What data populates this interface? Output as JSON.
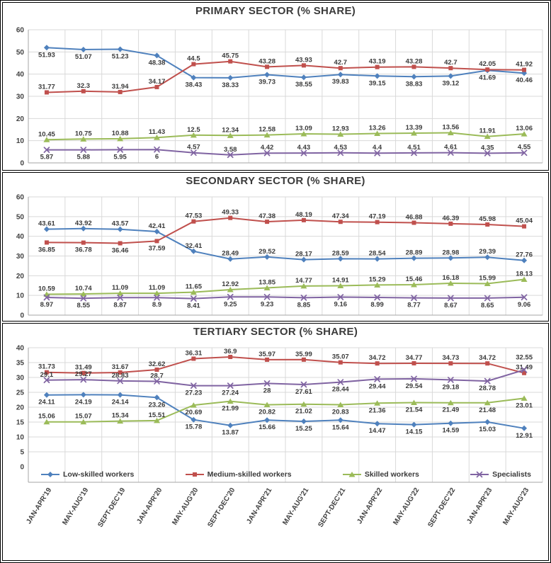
{
  "colors": {
    "grid": "#d9d9d9",
    "axis": "#a6a6a6",
    "tick_label": "#404040",
    "data_label": "#3a3a3a",
    "title": "#3b3b3b",
    "series_blue": "#4F81BD",
    "series_red": "#C0504D",
    "series_green": "#9BBB59",
    "series_purple": "#8064A2"
  },
  "categories": [
    "JAN-APR'19",
    "MAY-AUG'19",
    "SEPT-DEC'19",
    "JAN-APR'20",
    "MAY-AUG'20",
    "SEPT-DEC'20",
    "JAN-APR'21",
    "MAY-AUG'21",
    "SEPT-DEC'21",
    "JAN-APR'22",
    "MAY-AUG'22",
    "SEPT-DEC'22",
    "JAN-APR'23",
    "MAY-AUG'23"
  ],
  "legend": [
    {
      "label": "Low-skilled workers",
      "marker": "diamond",
      "color": "#4F81BD"
    },
    {
      "label": "Medium-skilled workers",
      "marker": "square",
      "color": "#C0504D"
    },
    {
      "label": "Skilled workers",
      "marker": "triangle",
      "color": "#9BBB59"
    },
    {
      "label": "Specialists",
      "marker": "x",
      "color": "#8064A2"
    }
  ],
  "chart_data": [
    {
      "type": "line",
      "title": "PRIMARY SECTOR (% SHARE)",
      "ylim": [
        0,
        60
      ],
      "ystep": 10,
      "grid": true,
      "legend_position": "none",
      "show_x_labels": false,
      "series": [
        {
          "name": "Low-skilled workers",
          "color": "#4F81BD",
          "marker": "diamond",
          "label_sides": "bbbbbbbbbbbbbb",
          "values": [
            51.93,
            51.07,
            51.23,
            48.38,
            38.43,
            38.33,
            39.73,
            38.55,
            39.83,
            39.15,
            38.83,
            39.12,
            41.69,
            40.46
          ]
        },
        {
          "name": "Medium-skilled workers",
          "color": "#C0504D",
          "marker": "square",
          "label_sides": "aaaaaaaaaaaaaa",
          "values": [
            31.77,
            32.3,
            31.94,
            34.17,
            44.5,
            45.75,
            43.28,
            43.93,
            42.7,
            43.19,
            43.28,
            42.7,
            42.05,
            41.92
          ]
        },
        {
          "name": "Skilled workers",
          "color": "#9BBB59",
          "marker": "triangle",
          "label_sides": "aaaaaaaaaaaaaa",
          "values": [
            10.45,
            10.75,
            10.88,
            11.43,
            12.5,
            12.34,
            12.58,
            13.09,
            12.93,
            13.26,
            13.39,
            13.56,
            11.91,
            13.06
          ]
        },
        {
          "name": "Specialists",
          "color": "#8064A2",
          "marker": "x",
          "label_sides": "bbbbaaaaaaaaaa",
          "values": [
            5.87,
            5.88,
            5.95,
            6,
            4.57,
            3.58,
            4.42,
            4.43,
            4.53,
            4.4,
            4.51,
            4.61,
            4.35,
            4.55
          ]
        }
      ]
    },
    {
      "type": "line",
      "title": "SECONDARY SECTOR (% SHARE)",
      "ylim": [
        0,
        60
      ],
      "ystep": 10,
      "grid": true,
      "legend_position": "none",
      "show_x_labels": false,
      "series": [
        {
          "name": "Low-skilled workers",
          "color": "#4F81BD",
          "marker": "diamond",
          "label_sides": "aaaaaaaaaaaaaa",
          "values": [
            43.61,
            43.92,
            43.57,
            42.41,
            32.41,
            28.49,
            29.52,
            28.17,
            28.59,
            28.54,
            28.89,
            28.98,
            29.39,
            27.76
          ]
        },
        {
          "name": "Medium-skilled workers",
          "color": "#C0504D",
          "marker": "square",
          "label_sides": "bbbbaaaaaaaaaa",
          "values": [
            36.85,
            36.78,
            36.46,
            37.59,
            47.53,
            49.33,
            47.38,
            48.19,
            47.34,
            47.19,
            46.88,
            46.39,
            45.98,
            45.04
          ]
        },
        {
          "name": "Skilled workers",
          "color": "#9BBB59",
          "marker": "triangle",
          "label_sides": "aaaaaaaaaaaaaa",
          "values": [
            10.59,
            10.74,
            11.09,
            11.09,
            11.65,
            12.92,
            13.85,
            14.77,
            14.91,
            15.29,
            15.46,
            16.18,
            15.99,
            18.13
          ]
        },
        {
          "name": "Specialists",
          "color": "#8064A2",
          "marker": "x",
          "label_sides": "bbbbbbbbbbbbbb",
          "values": [
            8.97,
            8.55,
            8.87,
            8.9,
            8.41,
            9.25,
            9.23,
            8.85,
            9.16,
            8.99,
            8.77,
            8.67,
            8.65,
            9.06
          ]
        }
      ]
    },
    {
      "type": "line",
      "title": "TERTIARY SECTOR (% SHARE)",
      "ylim": [
        0,
        40
      ],
      "ystep": 5,
      "grid": true,
      "legend_position": "bottom",
      "show_x_labels": true,
      "series": [
        {
          "name": "Low-skilled workers",
          "color": "#4F81BD",
          "marker": "diamond",
          "label_sides": "bbbbbbbbbbbbbb",
          "values": [
            24.11,
            24.19,
            24.14,
            23.26,
            15.78,
            13.87,
            15.66,
            15.25,
            15.64,
            14.47,
            14.15,
            14.59,
            15.03,
            12.91
          ]
        },
        {
          "name": "Medium-skilled workers",
          "color": "#C0504D",
          "marker": "square",
          "label_sides": "aaaaaaaaaaaaaa",
          "values": [
            31.73,
            31.49,
            31.67,
            32.62,
            36.31,
            36.9,
            35.97,
            35.99,
            35.07,
            34.72,
            34.77,
            34.73,
            34.72,
            31.49
          ]
        },
        {
          "name": "Skilled workers",
          "color": "#9BBB59",
          "marker": "triangle",
          "label_sides": "aaaabbbbbbbbbb",
          "values": [
            15.06,
            15.07,
            15.34,
            15.51,
            20.69,
            21.99,
            20.82,
            21.02,
            20.83,
            21.36,
            21.54,
            21.49,
            21.48,
            23.01
          ]
        },
        {
          "name": "Specialists",
          "color": "#8064A2",
          "marker": "x",
          "label_sides": "aaaabbbbbbbbbA",
          "values": [
            29.1,
            29.27,
            28.83,
            28.7,
            27.23,
            27.24,
            28,
            27.61,
            28.44,
            29.44,
            29.54,
            29.18,
            28.78,
            32.55
          ]
        }
      ]
    }
  ]
}
